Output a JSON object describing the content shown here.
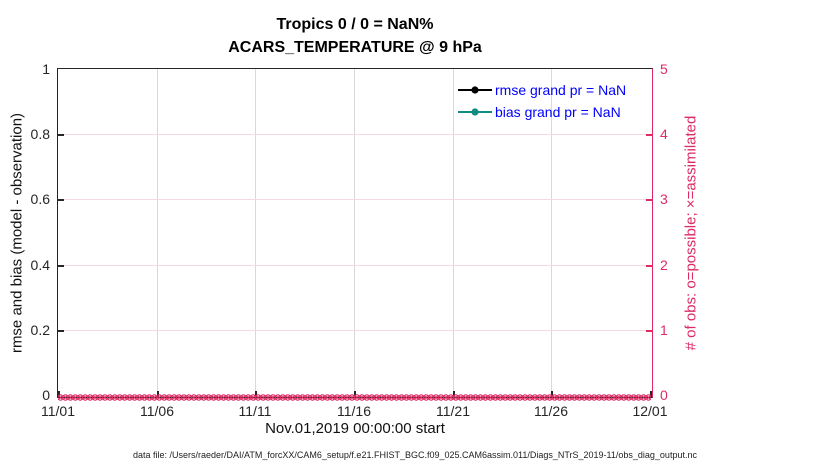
{
  "figure": {
    "title": "Tropics 0 / 0 = NaN%",
    "subtitle": "ACARS_TEMPERATURE @ 9 hPa",
    "caption": "data file: /Users/raeder/DAI/ATM_forcXX/CAM6_setup/f.e21.FHIST_BGC.f09_025.CAM6assim.011/Diags_NTrS_2019-11/obs_diag_output.nc"
  },
  "chart_data": {
    "type": "line",
    "title": "Tropics 0 / 0 = NaN%",
    "subtitle": "ACARS_TEMPERATURE @ 9 hPa",
    "xlabel": "Nov.01,2019 00:00:00 start",
    "x_tick_labels": [
      "11/01",
      "11/06",
      "11/11",
      "11/16",
      "11/21",
      "11/26",
      "12/01"
    ],
    "x_range_days": [
      0,
      30
    ],
    "grid": true,
    "left_axis": {
      "label": "rmse and bias (model - observation)",
      "range": [
        0,
        1
      ],
      "tick_labels": [
        "0",
        "0.2",
        "0.4",
        "0.6",
        "0.8",
        "1"
      ],
      "color": "#262626"
    },
    "right_axis": {
      "label": "# of obs: o=possible; ×=assimilated",
      "range": [
        0,
        5
      ],
      "tick_labels": [
        "0",
        "1",
        "2",
        "3",
        "4",
        "5"
      ],
      "color": "#DD2B63"
    },
    "legend": {
      "position": "top-right-inside",
      "box": false,
      "text_color": "#0000FF",
      "entries": [
        {
          "label": "rmse grand pr = NaN",
          "color": "#000000",
          "marker": "filled-circle"
        },
        {
          "label": "bias grand pr = NaN",
          "color": "#108C82",
          "marker": "filled-circle"
        }
      ]
    },
    "series": [
      {
        "name": "rmse",
        "color": "#000000",
        "marker": "filled-circle",
        "grand_pr": "NaN",
        "values_all": "NaN",
        "plotted": false
      },
      {
        "name": "bias",
        "color": "#108C82",
        "marker": "filled-circle",
        "grand_pr": "NaN",
        "values_all": "NaN",
        "plotted": false
      },
      {
        "name": "obs_possible",
        "color": "#DD2B63",
        "marker": "o",
        "axis": "right",
        "n_time_bins": 120,
        "bin_hours": 6,
        "values_constant": 0
      },
      {
        "name": "obs_assimilated",
        "color": "#DD2B63",
        "marker": "×",
        "axis": "right",
        "n_time_bins": 120,
        "bin_hours": 6,
        "values_constant": 0
      }
    ],
    "summary_counts": {
      "assimilated": 0,
      "possible": 0,
      "percent": "NaN%"
    }
  }
}
